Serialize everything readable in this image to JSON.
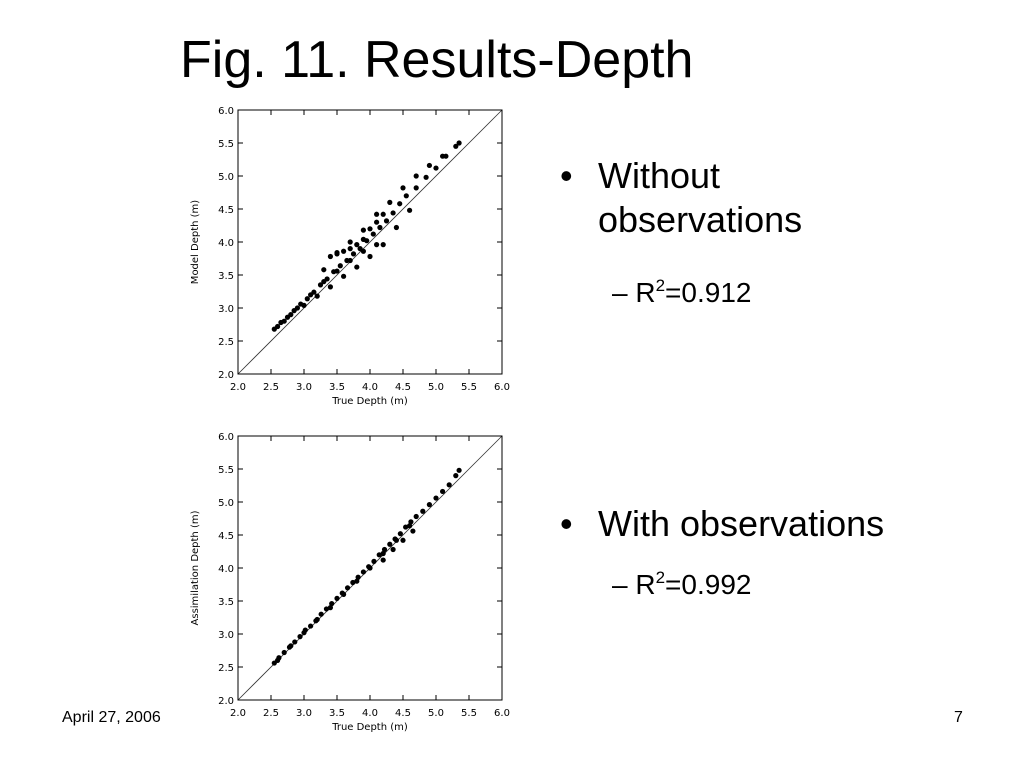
{
  "slide": {
    "title": "Fig. 11. Results-Depth",
    "bullets": [
      {
        "text": "Without observations",
        "sub_prefix": "– R",
        "sub_sup": "2",
        "sub_value": "=0.912"
      },
      {
        "text": "With observations",
        "sub_prefix": "– R",
        "sub_sup": "2",
        "sub_value": "=0.992"
      }
    ],
    "bullet_glyph": "•",
    "footer_date": "April 27, 2006",
    "page_number": "7"
  },
  "chart_data": [
    {
      "type": "scatter",
      "xlabel": "True Depth (m)",
      "ylabel": "Model Depth (m)",
      "xlim": [
        2.0,
        6.0
      ],
      "ylim": [
        2.0,
        6.0
      ],
      "xticks": [
        "2.0",
        "2.5",
        "3.0",
        "3.5",
        "4.0",
        "4.5",
        "5.0",
        "5.5",
        "6.0"
      ],
      "yticks": [
        "2.0",
        "2.5",
        "3.0",
        "3.5",
        "4.0",
        "4.5",
        "5.0",
        "5.5",
        "6.0"
      ],
      "reference_line": "1:1",
      "grid": false,
      "colors": {
        "points": "#000000",
        "reference": "#333333"
      },
      "x": [
        2.55,
        2.65,
        2.75,
        2.85,
        2.95,
        3.05,
        3.15,
        3.25,
        3.35,
        3.45,
        3.55,
        3.65,
        3.75,
        3.85,
        3.95,
        4.05,
        4.15,
        4.25,
        4.35,
        4.45,
        4.55,
        4.7,
        4.85,
        5.0,
        5.15,
        5.3,
        5.35,
        2.6,
        2.8,
        3.0,
        3.2,
        3.4,
        3.6,
        3.8,
        4.0,
        4.2,
        4.4,
        4.6,
        2.7,
        2.9,
        3.1,
        3.3,
        3.5,
        3.7,
        3.9,
        4.1,
        3.4,
        3.5,
        3.6,
        3.7,
        3.8,
        3.9,
        4.0,
        4.1,
        4.2,
        3.3,
        3.5,
        3.7,
        3.9,
        4.1,
        4.3,
        4.5,
        4.7,
        4.9,
        5.1
      ],
      "y": [
        2.68,
        2.78,
        2.86,
        2.96,
        3.06,
        3.14,
        3.24,
        3.35,
        3.44,
        3.55,
        3.64,
        3.72,
        3.82,
        3.9,
        4.02,
        4.12,
        4.22,
        4.32,
        4.44,
        4.58,
        4.7,
        4.82,
        4.98,
        5.12,
        5.3,
        5.45,
        5.5,
        2.72,
        2.9,
        3.04,
        3.18,
        3.32,
        3.48,
        3.62,
        3.78,
        3.96,
        4.22,
        4.48,
        2.8,
        3.0,
        3.2,
        3.4,
        3.56,
        3.72,
        3.86,
        3.96,
        3.78,
        3.82,
        3.86,
        3.9,
        3.96,
        4.04,
        4.2,
        4.3,
        4.42,
        3.58,
        3.84,
        4.0,
        4.18,
        4.42,
        4.6,
        4.82,
        5.0,
        5.16,
        5.3
      ]
    },
    {
      "type": "scatter",
      "xlabel": "True Depth (m)",
      "ylabel": "Assimilation Depth (m)",
      "xlim": [
        2.0,
        6.0
      ],
      "ylim": [
        2.0,
        6.0
      ],
      "xticks": [
        "2.0",
        "2.5",
        "3.0",
        "3.5",
        "4.0",
        "4.5",
        "5.0",
        "5.5",
        "6.0"
      ],
      "yticks": [
        "2.0",
        "2.5",
        "3.0",
        "3.5",
        "4.0",
        "4.5",
        "5.0",
        "5.5",
        "6.0"
      ],
      "reference_line": "1:1",
      "grid": false,
      "colors": {
        "points": "#000000",
        "reference": "#333333"
      },
      "x": [
        2.55,
        2.62,
        2.7,
        2.78,
        2.86,
        2.94,
        3.02,
        3.1,
        3.18,
        3.26,
        3.34,
        3.42,
        3.5,
        3.58,
        3.66,
        3.74,
        3.82,
        3.9,
        3.98,
        4.06,
        4.14,
        4.22,
        4.3,
        4.38,
        4.46,
        4.54,
        4.62,
        4.7,
        4.8,
        4.9,
        5.0,
        5.1,
        5.2,
        5.3,
        5.35,
        2.6,
        2.8,
        3.0,
        3.2,
        3.4,
        3.6,
        3.8,
        4.0,
        4.2,
        4.4,
        4.6,
        4.2,
        4.35,
        4.5,
        4.65
      ],
      "y": [
        2.56,
        2.64,
        2.72,
        2.8,
        2.88,
        2.96,
        3.06,
        3.12,
        3.2,
        3.3,
        3.38,
        3.46,
        3.54,
        3.62,
        3.7,
        3.78,
        3.86,
        3.94,
        4.02,
        4.1,
        4.2,
        4.28,
        4.36,
        4.44,
        4.52,
        4.62,
        4.7,
        4.78,
        4.86,
        4.96,
        5.06,
        5.16,
        5.26,
        5.4,
        5.48,
        2.6,
        2.82,
        3.02,
        3.22,
        3.4,
        3.6,
        3.8,
        4.0,
        4.22,
        4.42,
        4.64,
        4.12,
        4.28,
        4.42,
        4.56
      ]
    }
  ]
}
